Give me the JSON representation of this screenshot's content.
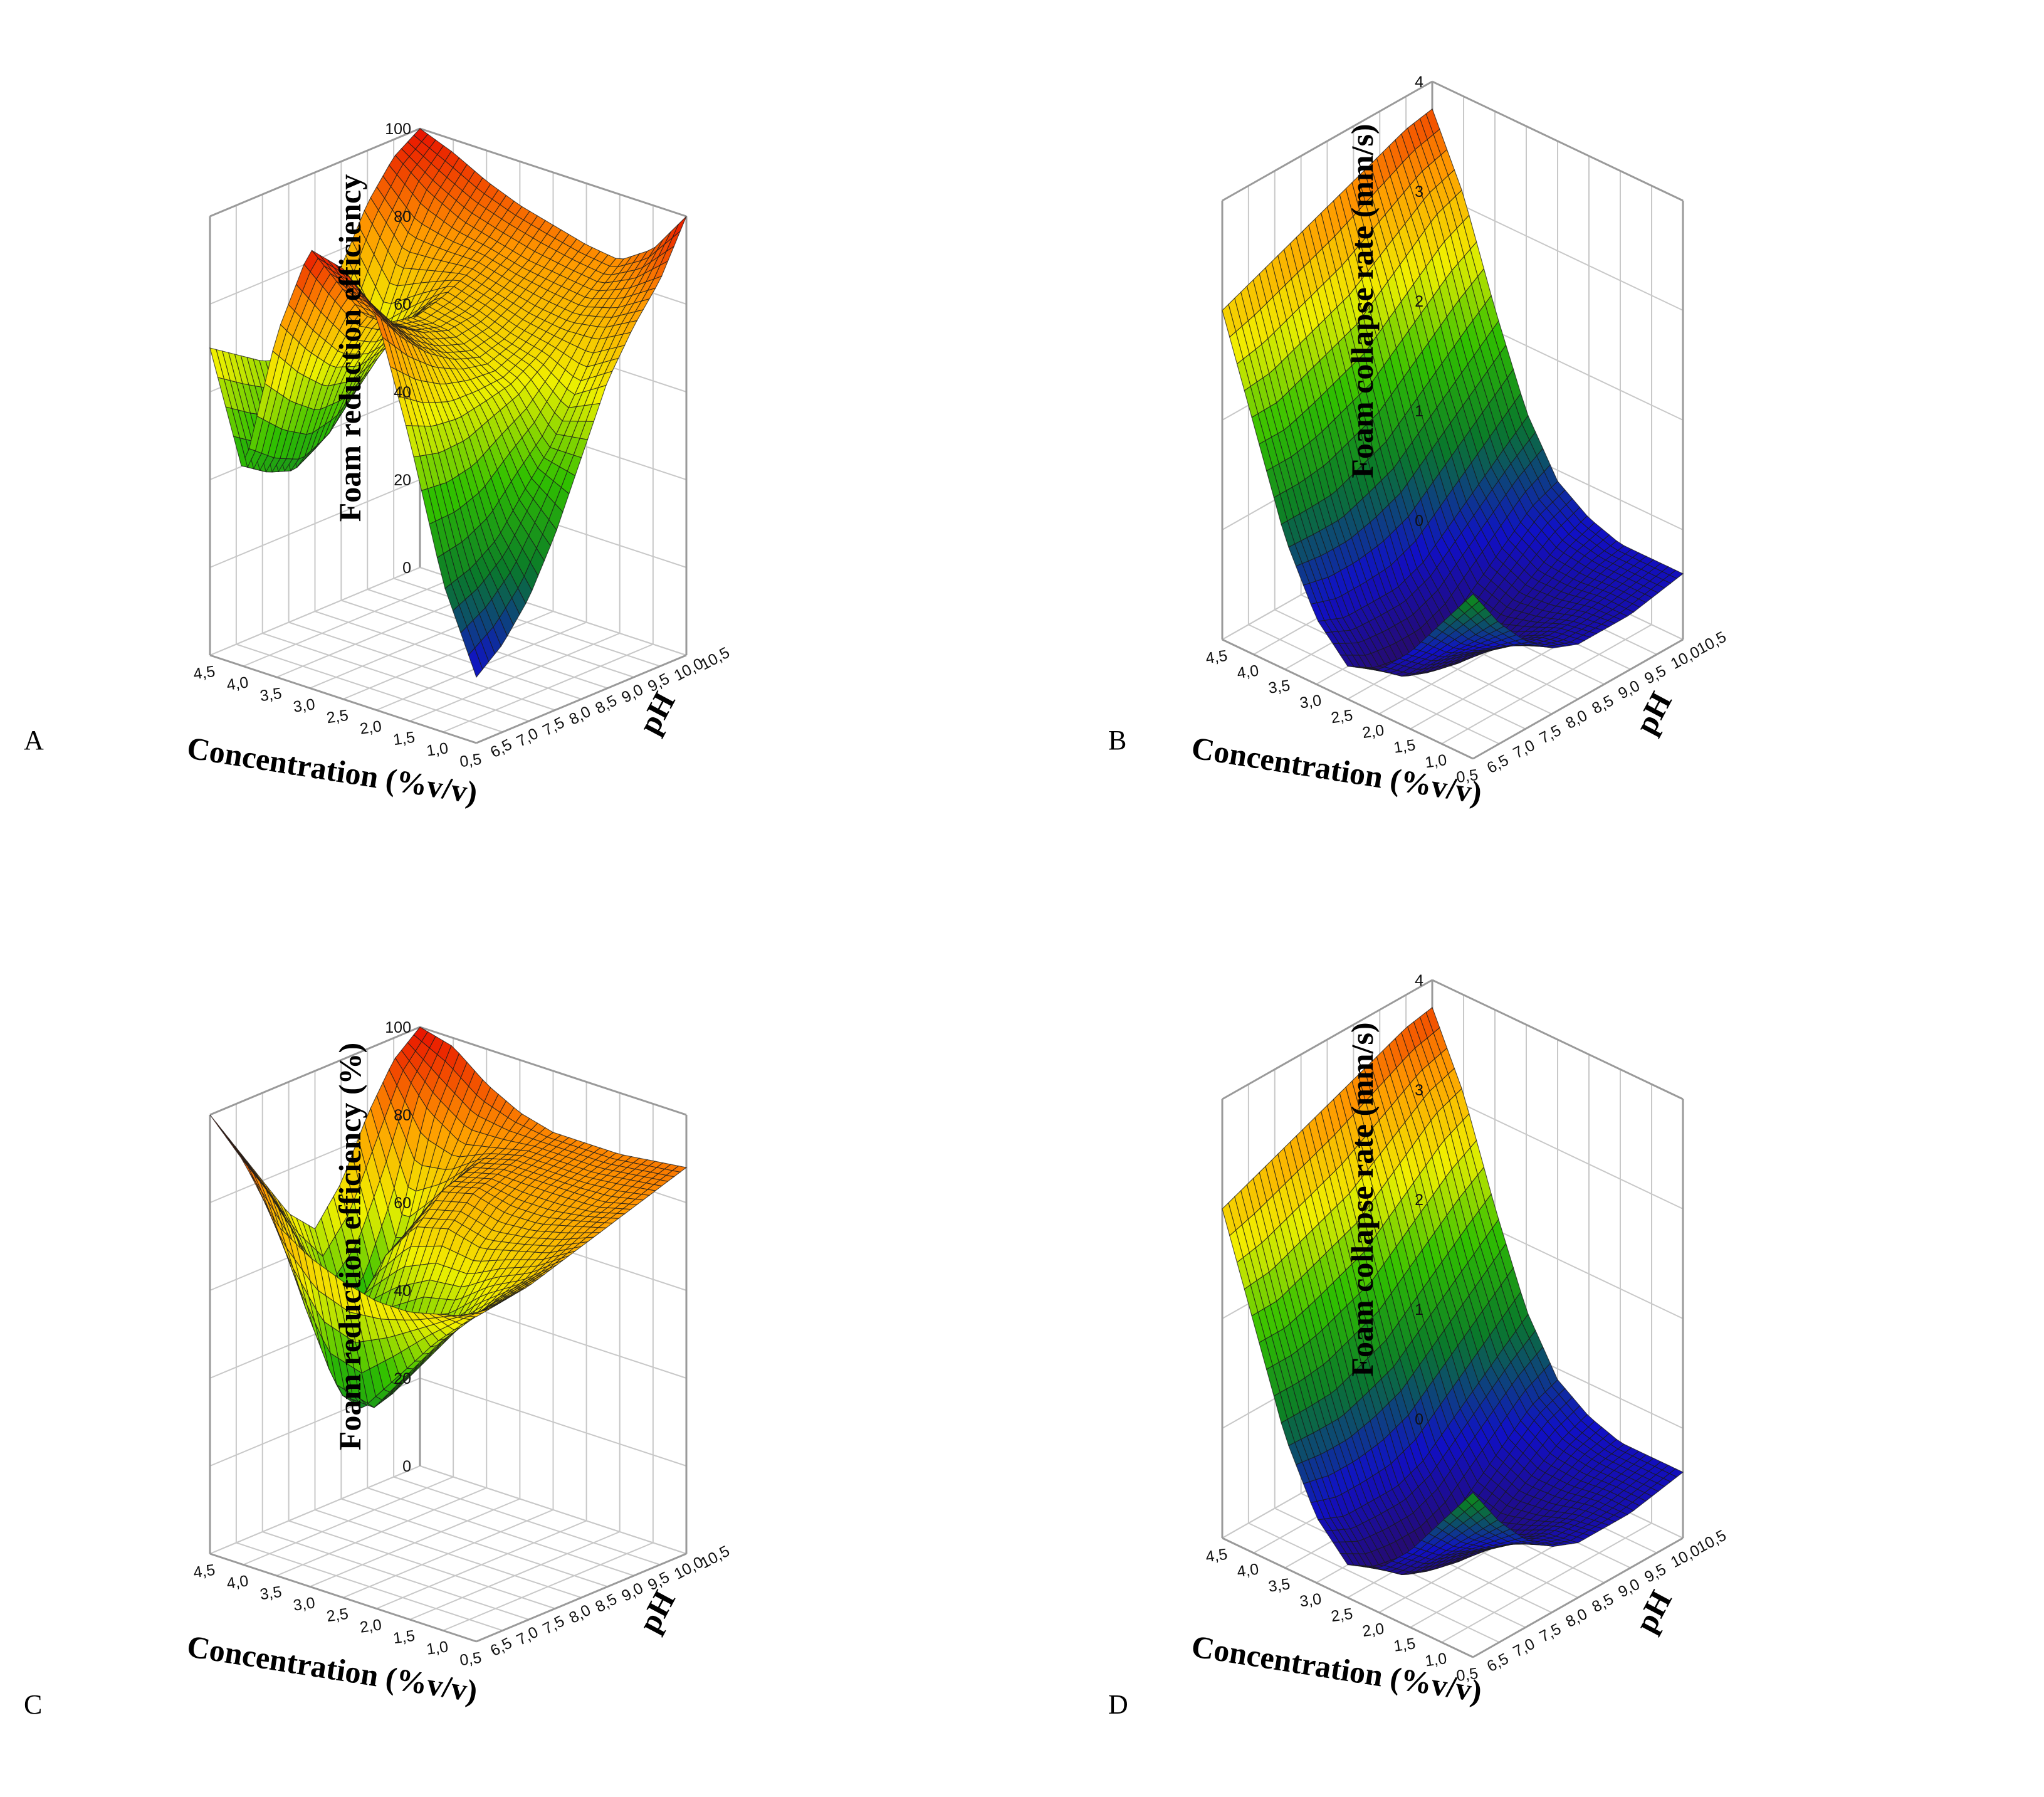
{
  "figure": {
    "panels": [
      "A",
      "B",
      "C",
      "D"
    ]
  },
  "chart_data": [
    {
      "panel_label": "A",
      "type": "surface",
      "zlabel": "Foam reduction efficiency",
      "xlabel": "Concentration (%v/v)",
      "ylabel": "pH",
      "xticks": [
        "4,5",
        "4,0",
        "3,5",
        "3,0",
        "2,5",
        "2,0",
        "1,5",
        "1,0",
        "0,5"
      ],
      "yticks": [
        "6,5",
        "7,0",
        "7,5",
        "8,0",
        "8,5",
        "9,0",
        "9,5",
        "10,0",
        "10,5"
      ],
      "zticks": [
        "0",
        "20",
        "40",
        "60",
        "80",
        "100"
      ],
      "xlim": [
        0.5,
        4.5
      ],
      "ylim": [
        6.5,
        10.5
      ],
      "zlim": [
        0,
        100
      ],
      "grid": true,
      "surface_x": [
        4.5,
        4.0,
        3.5,
        3.0,
        2.5,
        2.0,
        1.5,
        1.0,
        0.5
      ],
      "surface_y": [
        10.5,
        10.0,
        9.5,
        9.0,
        8.5,
        8.0,
        7.5,
        7.0,
        6.5
      ],
      "surface_z": [
        [
          100,
          97,
          93,
          90,
          88,
          86,
          85,
          90,
          100
        ],
        [
          96,
          90,
          86,
          84,
          82,
          81,
          80,
          83,
          88
        ],
        [
          88,
          78,
          79,
          80,
          78,
          76,
          75,
          76,
          80
        ],
        [
          76,
          62,
          70,
          77,
          75,
          72,
          70,
          65,
          70
        ],
        [
          66,
          50,
          64,
          75,
          74,
          70,
          66,
          55,
          55
        ],
        [
          60,
          42,
          62,
          76,
          76,
          72,
          64,
          48,
          40
        ],
        [
          62,
          38,
          64,
          80,
          80,
          76,
          62,
          40,
          28
        ],
        [
          66,
          40,
          70,
          90,
          88,
          82,
          62,
          36,
          20
        ],
        [
          70,
          44,
          78,
          100,
          98,
          90,
          64,
          34,
          15
        ]
      ]
    },
    {
      "panel_label": "B",
      "type": "surface",
      "zlabel": "Foam collapse rate (mm/s)",
      "xlabel": "Concentration (%v/v)",
      "ylabel": "pH",
      "xticks": [
        "4,5",
        "4,0",
        "3,5",
        "3,0",
        "2,5",
        "2,0",
        "1,5",
        "1,0",
        "0,5"
      ],
      "yticks": [
        "6,5",
        "7,0",
        "7,5",
        "8,0",
        "8,5",
        "9,0",
        "9,5",
        "10,0",
        "10,5"
      ],
      "zticks": [
        "0",
        "1",
        "2",
        "3",
        "4"
      ],
      "xlim": [
        0.5,
        4.5
      ],
      "ylim": [
        6.5,
        10.5
      ],
      "zlim": [
        0,
        4
      ],
      "grid": true,
      "surface_x": [
        4.5,
        4.0,
        3.5,
        3.0,
        2.5,
        2.0,
        1.5,
        1.0,
        0.5
      ],
      "surface_y": [
        10.5,
        10.0,
        9.5,
        9.0,
        8.5,
        8.0,
        7.5,
        7.0,
        6.5
      ],
      "surface_z": [
        [
          3.75,
          3.1,
          2.2,
          1.4,
          0.9,
          0.7,
          0.6,
          0.6,
          0.6
        ],
        [
          3.7,
          3.0,
          2.0,
          1.2,
          0.8,
          0.6,
          0.55,
          0.55,
          0.55
        ],
        [
          3.6,
          2.8,
          1.8,
          1.0,
          0.6,
          0.45,
          0.45,
          0.5,
          0.5
        ],
        [
          3.5,
          2.6,
          1.6,
          0.8,
          0.4,
          0.3,
          0.35,
          0.45,
          0.5
        ],
        [
          3.4,
          2.4,
          1.4,
          0.6,
          0.2,
          0.15,
          0.3,
          0.45,
          0.5
        ],
        [
          3.3,
          2.3,
          1.3,
          0.5,
          0.1,
          0.05,
          0.3,
          0.5,
          0.6
        ],
        [
          3.2,
          2.2,
          1.2,
          0.5,
          0.1,
          0.1,
          0.4,
          0.6,
          0.8
        ],
        [
          3.1,
          2.1,
          1.2,
          0.5,
          0.15,
          0.2,
          0.5,
          0.8,
          1.1
        ],
        [
          3.0,
          2.1,
          1.2,
          0.6,
          0.3,
          0.4,
          0.7,
          1.1,
          1.5
        ]
      ]
    },
    {
      "panel_label": "C",
      "type": "surface",
      "zlabel": "Foam reduction efficiency (%)",
      "xlabel": "Concentration (%v/v)",
      "ylabel": "pH",
      "xticks": [
        "4,5",
        "4,0",
        "3,5",
        "3,0",
        "2,5",
        "2,0",
        "1,5",
        "1,0",
        "0,5"
      ],
      "yticks": [
        "6,5",
        "7,0",
        "7,5",
        "8,0",
        "8,5",
        "9,0",
        "9,5",
        "10,0",
        "10,5"
      ],
      "zticks": [
        "0",
        "20",
        "40",
        "60",
        "80",
        "100"
      ],
      "xlim": [
        0.5,
        4.5
      ],
      "ylim": [
        6.5,
        10.5
      ],
      "zlim": [
        0,
        100
      ],
      "grid": true,
      "surface_x": [
        4.5,
        4.0,
        3.5,
        3.0,
        2.5,
        2.0,
        1.5,
        1.0,
        0.5
      ],
      "surface_y": [
        10.5,
        10.0,
        9.5,
        9.0,
        8.5,
        8.0,
        7.5,
        7.0,
        6.5
      ],
      "surface_z": [
        [
          100,
          98,
          92,
          88,
          86,
          86,
          86,
          87,
          88
        ],
        [
          95,
          85,
          80,
          82,
          84,
          84,
          84,
          85,
          86
        ],
        [
          85,
          60,
          70,
          80,
          82,
          82,
          82,
          82,
          84
        ],
        [
          72,
          45,
          66,
          78,
          80,
          78,
          78,
          80,
          82
        ],
        [
          64,
          40,
          62,
          72,
          74,
          72,
          74,
          76,
          80
        ],
        [
          70,
          55,
          50,
          55,
          60,
          62,
          68,
          72,
          78
        ],
        [
          80,
          70,
          45,
          35,
          42,
          52,
          62,
          70,
          76
        ],
        [
          90,
          82,
          60,
          42,
          40,
          50,
          60,
          68,
          75
        ],
        [
          100,
          92,
          80,
          75,
          72,
          70,
          70,
          72,
          74
        ]
      ]
    },
    {
      "panel_label": "D",
      "type": "surface",
      "zlabel": "Foam collapse rate (mm/s)",
      "xlabel": "Concentration (%v/v)",
      "ylabel": "pH",
      "xticks": [
        "4,5",
        "4,0",
        "3,5",
        "3,0",
        "2,5",
        "2,0",
        "1,5",
        "1,0",
        "0,5"
      ],
      "yticks": [
        "6,5",
        "7,0",
        "7,5",
        "8,0",
        "8,5",
        "9,0",
        "9,5",
        "10,0",
        "10,5"
      ],
      "zticks": [
        "0",
        "1",
        "2",
        "3",
        "4"
      ],
      "xlim": [
        0.5,
        4.5
      ],
      "ylim": [
        6.5,
        10.5
      ],
      "zlim": [
        0,
        4
      ],
      "grid": true,
      "surface_x": [
        4.5,
        4.0,
        3.5,
        3.0,
        2.5,
        2.0,
        1.5,
        1.0,
        0.5
      ],
      "surface_y": [
        10.5,
        10.0,
        9.5,
        9.0,
        8.5,
        8.0,
        7.5,
        7.0,
        6.5
      ],
      "surface_z": [
        [
          3.75,
          3.1,
          2.2,
          1.4,
          0.9,
          0.7,
          0.6,
          0.6,
          0.6
        ],
        [
          3.7,
          3.0,
          2.0,
          1.2,
          0.8,
          0.6,
          0.55,
          0.55,
          0.55
        ],
        [
          3.6,
          2.8,
          1.8,
          1.0,
          0.6,
          0.45,
          0.45,
          0.5,
          0.5
        ],
        [
          3.5,
          2.6,
          1.6,
          0.8,
          0.4,
          0.3,
          0.35,
          0.45,
          0.5
        ],
        [
          3.4,
          2.4,
          1.4,
          0.6,
          0.2,
          0.15,
          0.3,
          0.45,
          0.5
        ],
        [
          3.3,
          2.3,
          1.3,
          0.5,
          0.1,
          0.05,
          0.3,
          0.5,
          0.6
        ],
        [
          3.2,
          2.2,
          1.2,
          0.5,
          0.1,
          0.1,
          0.4,
          0.6,
          0.8
        ],
        [
          3.1,
          2.1,
          1.2,
          0.5,
          0.15,
          0.2,
          0.5,
          0.8,
          1.1
        ],
        [
          3.0,
          2.1,
          1.2,
          0.6,
          0.3,
          0.4,
          0.7,
          1.1,
          1.5
        ]
      ]
    }
  ],
  "colors": {
    "grid": "#c8c8c8",
    "frame": "#9a9a9a",
    "mesh": "#1a1a1a",
    "colormap": [
      "#2a0a5e",
      "#1010c8",
      "#0a7a2a",
      "#30c000",
      "#f0f000",
      "#ff9a00",
      "#e81000"
    ]
  }
}
